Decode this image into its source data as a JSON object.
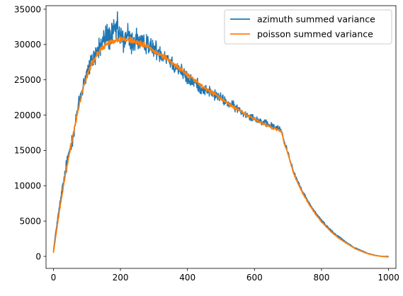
{
  "chart_data": {
    "type": "line",
    "title": "",
    "xlabel": "",
    "ylabel": "",
    "xlim": [
      -22,
      1022
    ],
    "ylim": [
      -1700,
      35500
    ],
    "xticks": [
      0,
      200,
      400,
      600,
      800,
      1000
    ],
    "yticks": [
      0,
      5000,
      10000,
      15000,
      20000,
      25000,
      30000,
      35000
    ],
    "grid": false,
    "legend_position": "top-right",
    "series": [
      {
        "name": "azimuth summed variance",
        "color": "#1f77b4",
        "x": [
          0,
          10,
          20,
          30,
          40,
          50,
          60,
          70,
          80,
          90,
          100,
          110,
          120,
          130,
          140,
          150,
          160,
          170,
          180,
          190,
          200,
          210,
          220,
          230,
          240,
          250,
          260,
          270,
          280,
          290,
          300,
          320,
          340,
          360,
          380,
          400,
          420,
          440,
          460,
          480,
          500,
          520,
          540,
          560,
          580,
          600,
          620,
          640,
          660,
          680,
          690,
          700,
          710,
          720,
          740,
          760,
          780,
          800,
          820,
          840,
          860,
          880,
          900,
          920,
          940,
          960,
          980,
          1000
        ],
        "y": [
          800,
          4500,
          7500,
          10500,
          13000,
          15500,
          17500,
          20000,
          22500,
          24500,
          26000,
          27000,
          28200,
          29000,
          29700,
          30500,
          31400,
          31000,
          31600,
          32200,
          31000,
          30500,
          31500,
          30200,
          30600,
          30800,
          29900,
          29800,
          30600,
          29400,
          29500,
          28800,
          28200,
          27000,
          26400,
          25000,
          24700,
          23800,
          23500,
          22900,
          22400,
          21700,
          21200,
          20500,
          20000,
          19600,
          19100,
          18700,
          18300,
          17900,
          16000,
          14800,
          13000,
          11500,
          9500,
          7800,
          6300,
          5100,
          4100,
          3200,
          2500,
          1800,
          1200,
          800,
          400,
          150,
          0,
          0
        ],
        "noise_amplitude": [
          0,
          300,
          700,
          1000,
          1200,
          1200,
          1300,
          1400,
          1500,
          1600,
          1700,
          1800,
          1900,
          2000,
          2000,
          2100,
          2200,
          2200,
          2200,
          2200,
          2200,
          2200,
          2200,
          2000,
          2000,
          1900,
          1800,
          1800,
          1700,
          1600,
          1500,
          1400,
          1300,
          1300,
          1200,
          1100,
          1000,
          900,
          900,
          850,
          800,
          750,
          700,
          650,
          600,
          550,
          550,
          500,
          500,
          450,
          400,
          350,
          300,
          300,
          250,
          220,
          180,
          160,
          140,
          120,
          100,
          80,
          70,
          60,
          50,
          40,
          30,
          0
        ]
      },
      {
        "name": "poisson summed variance",
        "color": "#ff7f0e",
        "x": [
          0,
          10,
          20,
          30,
          40,
          50,
          60,
          70,
          80,
          90,
          100,
          110,
          120,
          130,
          140,
          150,
          160,
          170,
          180,
          190,
          200,
          210,
          220,
          230,
          240,
          250,
          260,
          270,
          280,
          290,
          300,
          320,
          340,
          360,
          380,
          400,
          420,
          440,
          460,
          480,
          500,
          520,
          540,
          560,
          580,
          600,
          620,
          640,
          660,
          680,
          690,
          700,
          710,
          720,
          740,
          760,
          780,
          800,
          820,
          840,
          860,
          880,
          900,
          920,
          940,
          960,
          980,
          1000
        ],
        "y": [
          500,
          3800,
          7000,
          10000,
          12700,
          15200,
          17400,
          19800,
          22000,
          24100,
          25600,
          26800,
          27700,
          28500,
          29200,
          29700,
          30100,
          30400,
          30500,
          30600,
          30700,
          30800,
          30700,
          30600,
          30500,
          30300,
          30100,
          29900,
          29700,
          29400,
          29100,
          28500,
          27900,
          27200,
          26500,
          25700,
          25000,
          24200,
          23600,
          23000,
          22300,
          21700,
          21100,
          20500,
          19900,
          19400,
          18900,
          18500,
          18100,
          17700,
          15800,
          14600,
          12800,
          11300,
          9300,
          7600,
          6100,
          4900,
          3900,
          3000,
          2300,
          1700,
          1100,
          700,
          350,
          120,
          0,
          -100
        ],
        "noise_amplitude": [
          0,
          100,
          200,
          250,
          300,
          300,
          300,
          350,
          350,
          350,
          400,
          400,
          400,
          400,
          400,
          400,
          400,
          400,
          400,
          400,
          400,
          400,
          400,
          400,
          400,
          400,
          400,
          400,
          380,
          380,
          360,
          350,
          340,
          330,
          320,
          300,
          290,
          280,
          270,
          260,
          250,
          240,
          230,
          220,
          210,
          200,
          200,
          190,
          190,
          180,
          160,
          150,
          140,
          130,
          110,
          100,
          90,
          80,
          70,
          60,
          50,
          40,
          30,
          25,
          20,
          15,
          10,
          0
        ]
      }
    ]
  }
}
